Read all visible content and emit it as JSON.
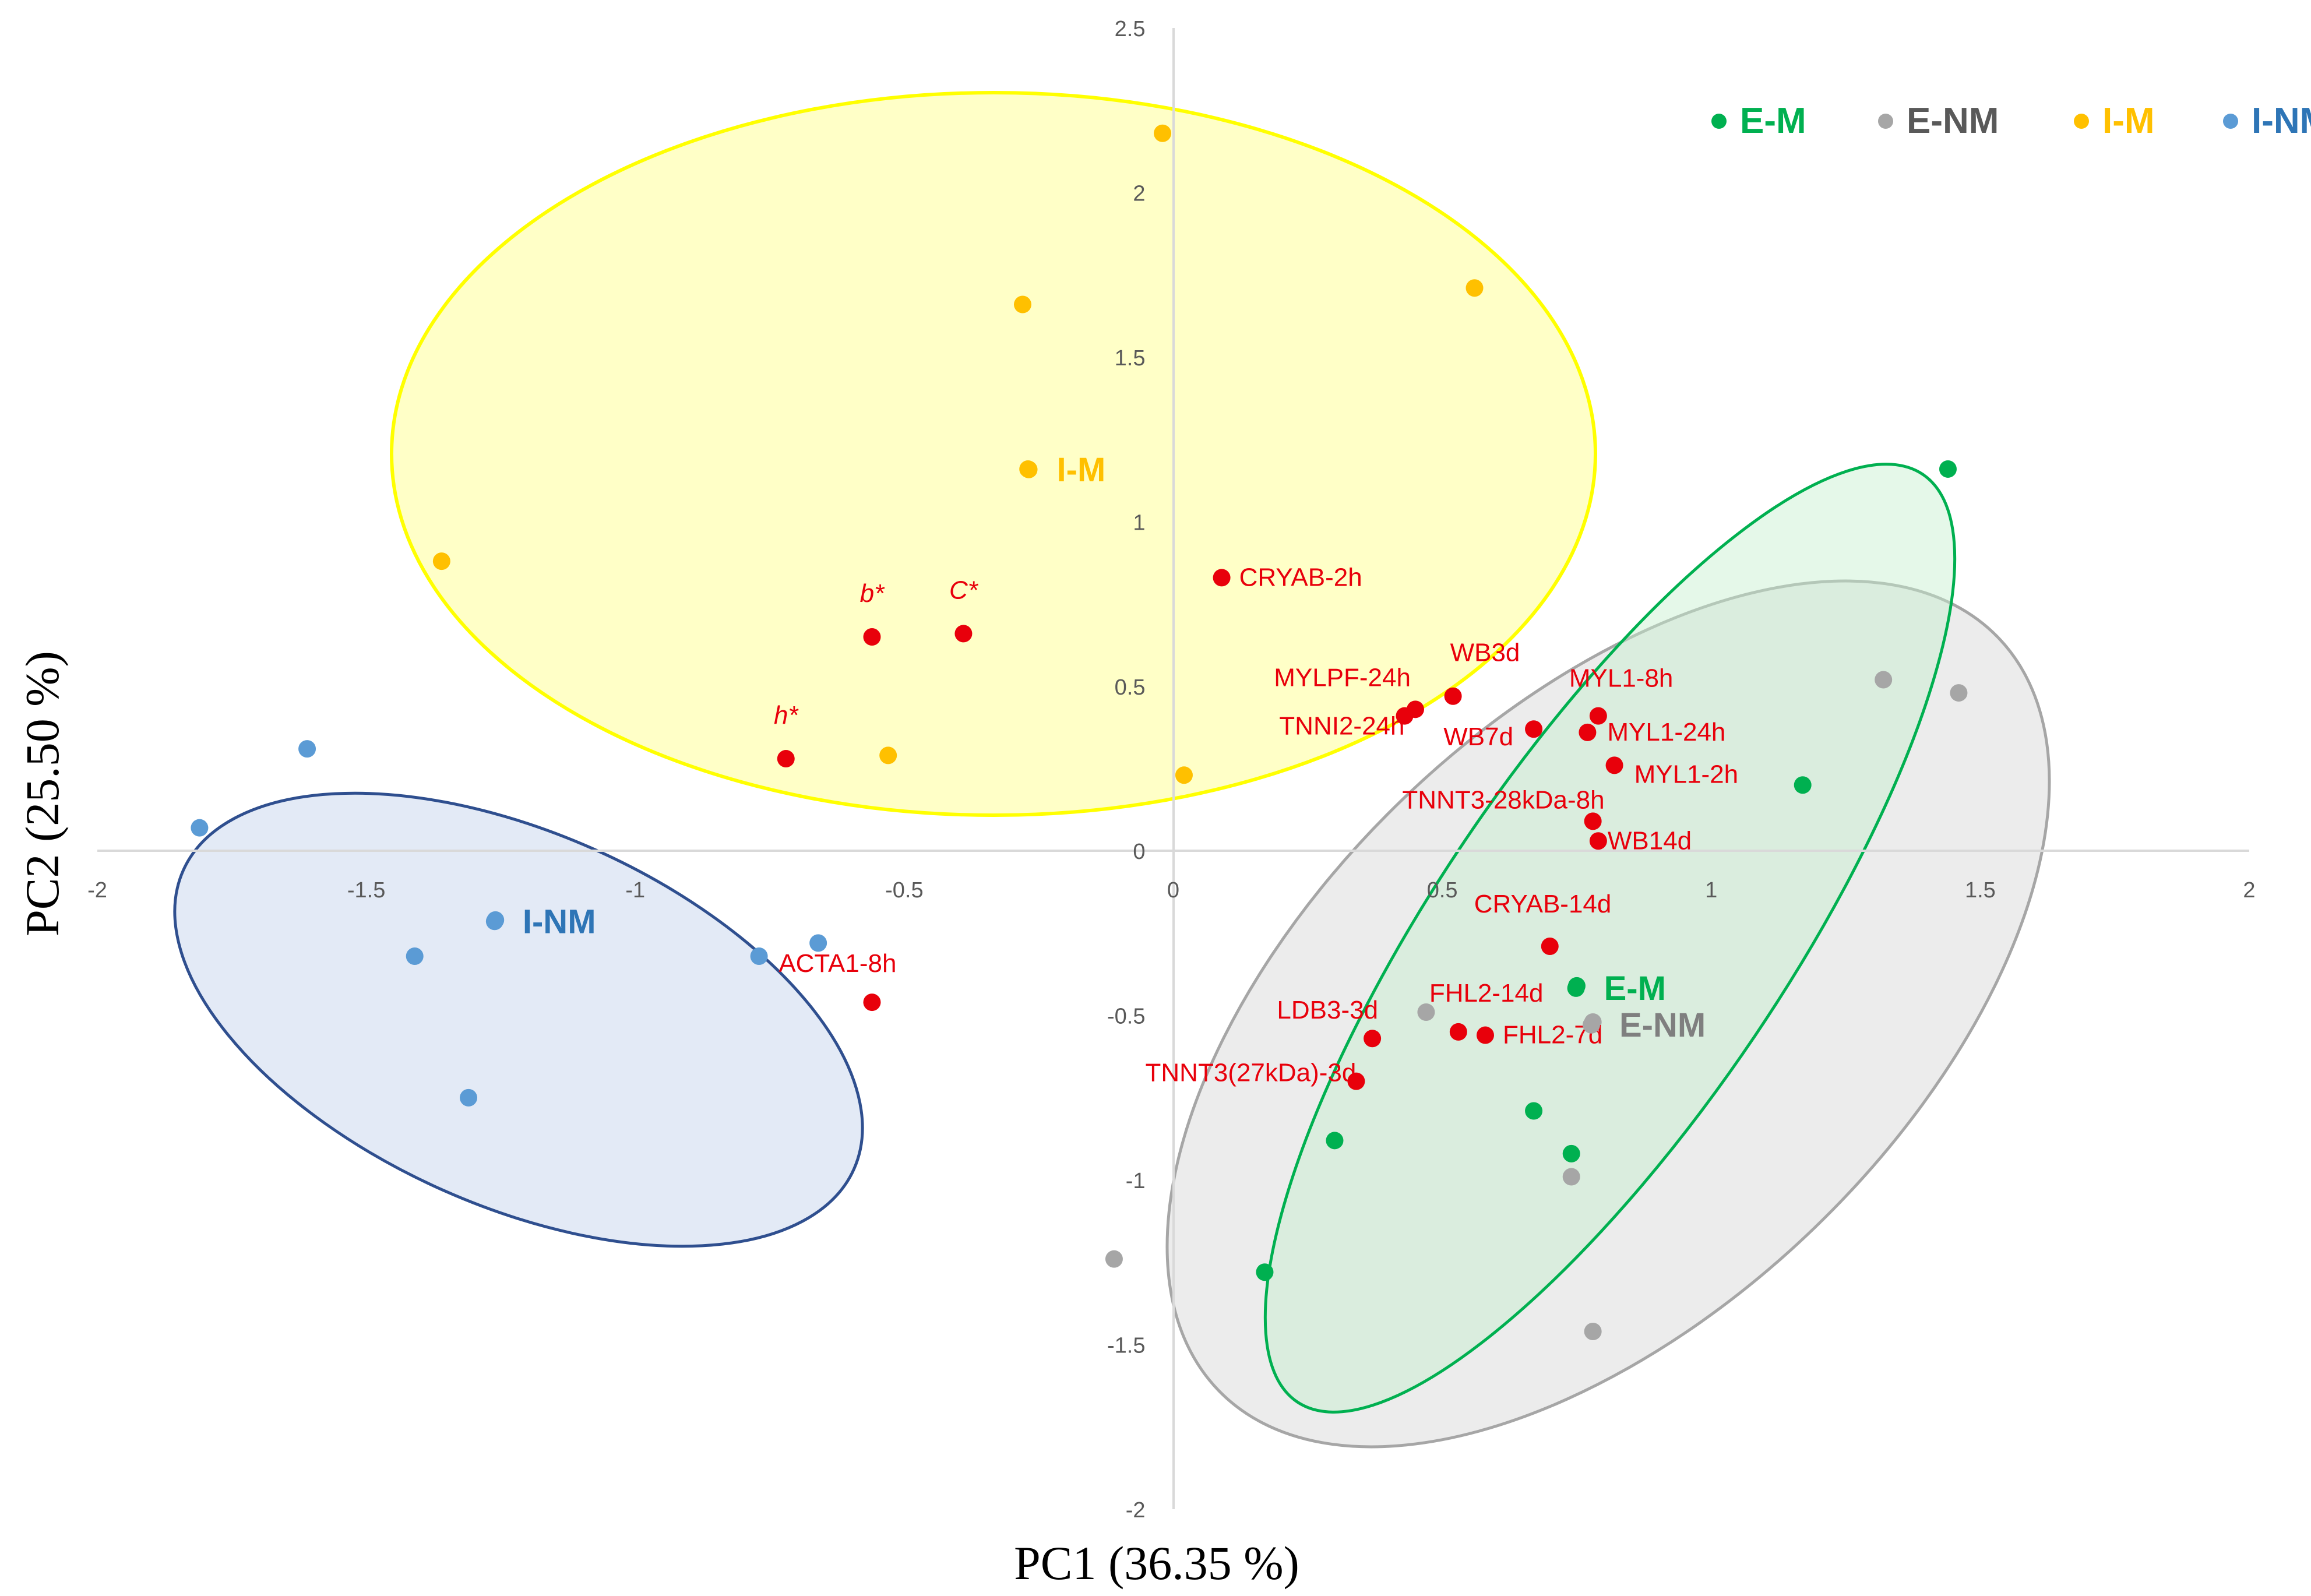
{
  "chart_data": {
    "type": "scatter",
    "title": "",
    "xlabel": "PC1 (36.35 %)",
    "ylabel": "PC2 (25.50 %)",
    "xlim": [
      -2,
      2
    ],
    "ylim": [
      -2,
      2.5
    ],
    "xticks": [
      -2,
      -1.5,
      -1,
      -0.5,
      0,
      0.5,
      1,
      1.5,
      2
    ],
    "yticks": [
      -2,
      -1.5,
      -1,
      -0.5,
      0,
      0.5,
      1,
      1.5,
      2,
      2.5
    ],
    "x_tick_labels": [
      "-2",
      "-1.5",
      "-1",
      "-0.5",
      "0",
      "0.5",
      "1",
      "1.5",
      "2"
    ],
    "y_tick_labels": [
      "-2",
      "-1.5",
      "-1",
      "-0.5",
      "0",
      "0.5",
      "1",
      "1.5",
      "2",
      "2.5"
    ],
    "grid": false,
    "legend_position": "top-right",
    "series": [
      {
        "name": "E-M",
        "color": "#00b050",
        "points": [
          [
            1.44,
            1.16
          ],
          [
            1.17,
            0.2
          ],
          [
            0.75,
            -0.41
          ],
          [
            0.67,
            -0.79
          ],
          [
            0.74,
            -0.92
          ],
          [
            0.3,
            -0.88
          ],
          [
            0.17,
            -1.28
          ]
        ]
      },
      {
        "name": "E-NM",
        "color": "#a6a6a6",
        "points": [
          [
            1.32,
            0.52
          ],
          [
            1.46,
            0.48
          ],
          [
            0.47,
            -0.49
          ],
          [
            0.74,
            -0.99
          ],
          [
            0.78,
            -0.52
          ],
          [
            -0.11,
            -1.24
          ],
          [
            0.78,
            -1.46
          ]
        ]
      },
      {
        "name": "I-M",
        "color": "#ffc000",
        "points": [
          [
            -0.02,
            2.18
          ],
          [
            0.56,
            1.71
          ],
          [
            -0.28,
            1.66
          ],
          [
            -0.27,
            1.16
          ],
          [
            -1.36,
            0.88
          ],
          [
            -0.53,
            0.29
          ],
          [
            0.02,
            0.23
          ]
        ]
      },
      {
        "name": "I-NM",
        "color": "#5b9bd5",
        "points": [
          [
            -1.61,
            0.31
          ],
          [
            -1.81,
            0.07
          ],
          [
            -1.26,
            -0.21
          ],
          [
            -1.41,
            -0.32
          ],
          [
            -0.77,
            -0.32
          ],
          [
            -0.66,
            -0.28
          ],
          [
            -1.31,
            -0.75
          ]
        ]
      }
    ],
    "variables": {
      "color": "#e8000b",
      "points": [
        {
          "label": "CRYAB-2h",
          "x": 0.09,
          "y": 0.83
        },
        {
          "label": "b*",
          "x": -0.56,
          "y": 0.65
        },
        {
          "label": "C*",
          "x": -0.39,
          "y": 0.66
        },
        {
          "label": "h*",
          "x": -0.72,
          "y": 0.28
        },
        {
          "label": "WB3d",
          "x": 0.52,
          "y": 0.47
        },
        {
          "label": "MYLPF-24h",
          "x": 0.45,
          "y": 0.43
        },
        {
          "label": "TNNI2-24h",
          "x": 0.43,
          "y": 0.41
        },
        {
          "label": "WB7d",
          "x": 0.67,
          "y": 0.37
        },
        {
          "label": "MYL1-8h",
          "x": 0.79,
          "y": 0.41
        },
        {
          "label": "MYL1-24h",
          "x": 0.77,
          "y": 0.36
        },
        {
          "label": "MYL1-2h",
          "x": 0.82,
          "y": 0.26
        },
        {
          "label": "TNNT3-28kDa-8h",
          "x": 0.78,
          "y": 0.09
        },
        {
          "label": "WB14d",
          "x": 0.79,
          "y": 0.03
        },
        {
          "label": "CRYAB-14d",
          "x": 0.7,
          "y": -0.29
        },
        {
          "label": "ACTA1-8h",
          "x": -0.56,
          "y": -0.46
        },
        {
          "label": "LDB3-3d",
          "x": 0.37,
          "y": -0.57
        },
        {
          "label": "FHL2-14d",
          "x": 0.53,
          "y": -0.55
        },
        {
          "label": "FHL2-7d",
          "x": 0.58,
          "y": -0.56
        },
        {
          "label": "TNNT3(27kDa)-3d",
          "x": 0.34,
          "y": -0.7
        }
      ]
    },
    "group_labels": [
      {
        "label": "I-M",
        "color": "#ffc000"
      },
      {
        "label": "I-NM",
        "color": "#2e75b6"
      },
      {
        "label": "E-M",
        "color": "#00b050"
      },
      {
        "label": "E-NM",
        "color": "#7f7f7f"
      }
    ]
  }
}
